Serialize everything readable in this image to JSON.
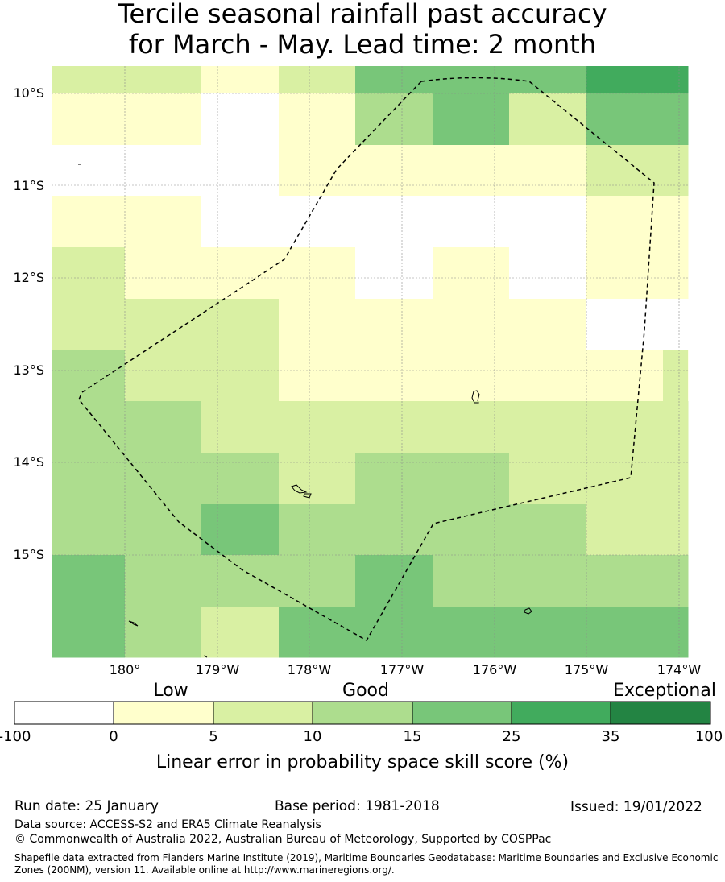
{
  "title": {
    "line1": "Tercile seasonal rainfall past accuracy",
    "line2": "for March - May. Lead time: 2 month"
  },
  "map": {
    "lat_labels": [
      "10°S",
      "11°S",
      "12°S",
      "13°S",
      "14°S",
      "15°S"
    ],
    "lon_labels": [
      "180°",
      "179°W",
      "178°W",
      "177°W",
      "176°W",
      "175°W",
      "174°W"
    ],
    "grid_rows": [
      [
        2,
        2,
        1,
        2,
        4,
        4,
        4,
        5
      ],
      [
        1,
        1,
        0,
        1,
        3,
        4,
        2,
        4
      ],
      [
        0,
        0,
        0,
        1,
        1,
        1,
        1,
        2
      ],
      [
        1,
        1,
        0,
        0,
        0,
        0,
        0,
        1
      ],
      [
        2,
        1,
        1,
        1,
        0,
        1,
        0,
        1
      ],
      [
        2,
        2,
        2,
        1,
        1,
        1,
        1,
        0
      ],
      [
        3,
        2,
        2,
        1,
        1,
        1,
        1,
        1
      ],
      [
        3,
        3,
        2,
        2,
        2,
        2,
        2,
        2
      ],
      [
        3,
        3,
        3,
        2,
        3,
        3,
        2,
        2
      ],
      [
        3,
        3,
        4,
        3,
        3,
        3,
        3,
        2
      ],
      [
        4,
        3,
        3,
        3,
        4,
        3,
        3,
        3
      ],
      [
        4,
        3,
        2,
        4,
        4,
        4,
        4,
        4
      ]
    ]
  },
  "colorbar": {
    "category_labels": [
      "Low",
      "Good",
      "Exceptional"
    ],
    "tick_labels": [
      "-100",
      "0",
      "5",
      "10",
      "15",
      "25",
      "35",
      "100"
    ],
    "colors": [
      "#ffffff",
      "#ffffcc",
      "#d9f0a3",
      "#addd8e",
      "#78c679",
      "#41ab5d",
      "#238443"
    ],
    "title": "Linear error in probability space skill score (%)"
  },
  "footer": {
    "run_date": "Run date: 25 January",
    "base_period": "Base period: 1981-2018",
    "issued": "Issued: 19/01/2022",
    "data_source": "Data source: ACCESS-S2 and ERA5 Climate Reanalysis",
    "copyright": "© Commonwealth of Australia 2022, Australian Bureau of Meteorology, Supported by COSPPac",
    "shapefile_note": "Shapefile data extracted from Flanders Marine Institute (2019), Maritime Boundaries Geodatabase: Maritime Boundaries and Exclusive Economic Zones (200NM), version 11. Available online at http://www.marineregions.org/."
  }
}
